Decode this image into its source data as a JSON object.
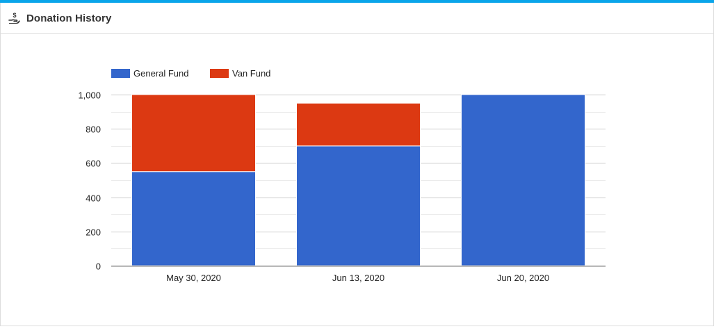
{
  "header": {
    "title": "Donation History",
    "icon": "hand-holding-dollar-icon"
  },
  "colors": {
    "accent_bar": "#0aa5ea",
    "general_fund": "#3366cc",
    "van_fund": "#dc3912",
    "gridline": "#cccccc",
    "minor_gridline": "#ebebeb",
    "axis_text": "#222222"
  },
  "chart_data": {
    "type": "bar",
    "stacked": true,
    "categories": [
      "May 30, 2020",
      "Jun 13, 2020",
      "Jun 20, 2020"
    ],
    "series": [
      {
        "name": "General Fund",
        "values": [
          550,
          700,
          1000
        ]
      },
      {
        "name": "Van Fund",
        "values": [
          450,
          250,
          0
        ]
      }
    ],
    "ylim": [
      0,
      1000
    ],
    "yticks": [
      0,
      200,
      400,
      600,
      800,
      1000
    ],
    "ytick_labels": [
      "0",
      "200",
      "400",
      "600",
      "800",
      "1,000"
    ],
    "grid": true,
    "legend_position": "top-left",
    "title": "",
    "xlabel": "",
    "ylabel": ""
  }
}
